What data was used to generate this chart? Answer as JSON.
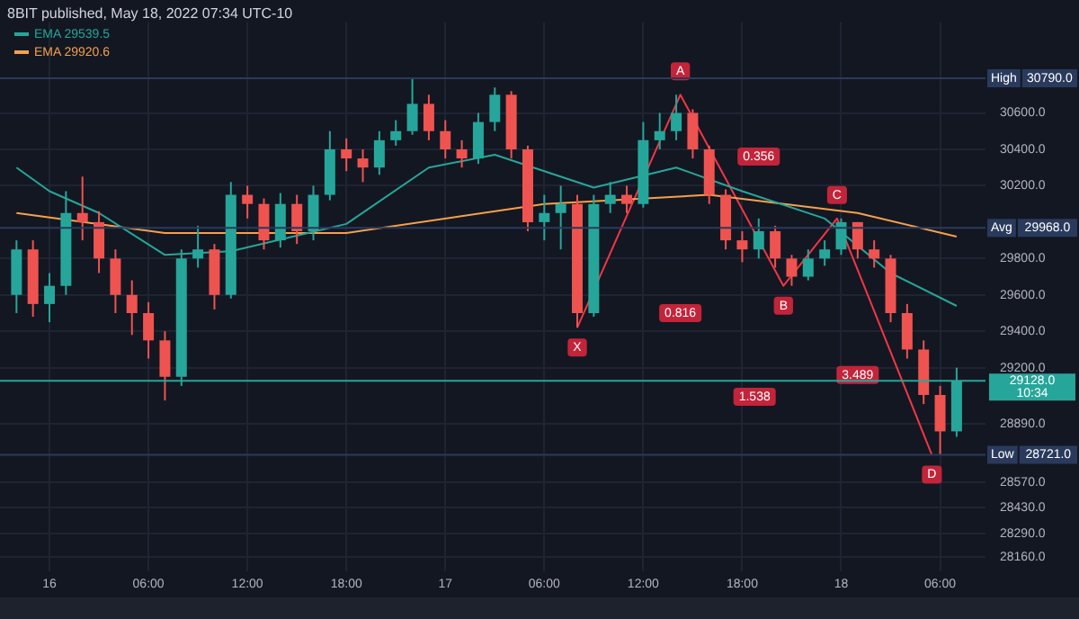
{
  "chart_data": {
    "type": "candlestick",
    "title": "8BIT published, May 18, 2022 07:34 UTC-10",
    "x": [
      "2022-05-15T22:00",
      "2022-05-15T23:00",
      "2022-05-16T00:00",
      "2022-05-16T01:00",
      "2022-05-16T02:00",
      "2022-05-16T03:00",
      "2022-05-16T04:00",
      "2022-05-16T05:00",
      "2022-05-16T06:00",
      "2022-05-16T07:00",
      "2022-05-16T08:00",
      "2022-05-16T09:00",
      "2022-05-16T10:00",
      "2022-05-16T11:00",
      "2022-05-16T12:00",
      "2022-05-16T13:00",
      "2022-05-16T14:00",
      "2022-05-16T15:00",
      "2022-05-16T16:00",
      "2022-05-16T17:00",
      "2022-05-16T18:00",
      "2022-05-16T19:00",
      "2022-05-16T20:00",
      "2022-05-16T21:00",
      "2022-05-16T22:00",
      "2022-05-16T23:00",
      "2022-05-17T00:00",
      "2022-05-17T01:00",
      "2022-05-17T02:00",
      "2022-05-17T03:00",
      "2022-05-17T04:00",
      "2022-05-17T05:00",
      "2022-05-17T06:00",
      "2022-05-17T07:00",
      "2022-05-17T08:00",
      "2022-05-17T09:00",
      "2022-05-17T10:00",
      "2022-05-17T11:00",
      "2022-05-17T12:00",
      "2022-05-17T13:00",
      "2022-05-17T14:00",
      "2022-05-17T15:00",
      "2022-05-17T16:00",
      "2022-05-17T17:00",
      "2022-05-17T18:00",
      "2022-05-17T19:00",
      "2022-05-17T20:00",
      "2022-05-17T21:00",
      "2022-05-17T22:00",
      "2022-05-17T23:00",
      "2022-05-18T00:00",
      "2022-05-18T01:00",
      "2022-05-18T02:00",
      "2022-05-18T03:00",
      "2022-05-18T04:00",
      "2022-05-18T05:00",
      "2022-05-18T06:00",
      "2022-05-18T07:00"
    ],
    "ohlc": [
      [
        29600,
        29900,
        29500,
        29850
      ],
      [
        29850,
        29900,
        29480,
        29550
      ],
      [
        29550,
        29720,
        29450,
        29650
      ],
      [
        29650,
        30170,
        29600,
        30050
      ],
      [
        30050,
        30250,
        29900,
        30000
      ],
      [
        30000,
        30060,
        29720,
        29800
      ],
      [
        29800,
        29850,
        29500,
        29600
      ],
      [
        29600,
        29680,
        29380,
        29500
      ],
      [
        29500,
        29560,
        29250,
        29350
      ],
      [
        29350,
        29400,
        29020,
        29150
      ],
      [
        29150,
        29850,
        29100,
        29800
      ],
      [
        29800,
        29980,
        29750,
        29850
      ],
      [
        29850,
        29880,
        29520,
        29600
      ],
      [
        29600,
        30220,
        29580,
        30150
      ],
      [
        30150,
        30200,
        30020,
        30100
      ],
      [
        30100,
        30130,
        29850,
        29900
      ],
      [
        29900,
        30160,
        29860,
        30100
      ],
      [
        30100,
        30150,
        29880,
        29950
      ],
      [
        29950,
        30200,
        29900,
        30150
      ],
      [
        30150,
        30500,
        30120,
        30400
      ],
      [
        30400,
        30460,
        30280,
        30350
      ],
      [
        30350,
        30400,
        30220,
        30300
      ],
      [
        30300,
        30500,
        30260,
        30450
      ],
      [
        30450,
        30560,
        30420,
        30500
      ],
      [
        30500,
        30790,
        30480,
        30650
      ],
      [
        30650,
        30700,
        30450,
        30500
      ],
      [
        30500,
        30560,
        30350,
        30400
      ],
      [
        30400,
        30450,
        30300,
        30350
      ],
      [
        30350,
        30600,
        30320,
        30550
      ],
      [
        30550,
        30740,
        30500,
        30700
      ],
      [
        30700,
        30720,
        30350,
        30400
      ],
      [
        30400,
        30420,
        29950,
        30000
      ],
      [
        30000,
        30150,
        29900,
        30050
      ],
      [
        30050,
        30200,
        29850,
        30100
      ],
      [
        30100,
        30150,
        29420,
        29500
      ],
      [
        29500,
        30150,
        29480,
        30100
      ],
      [
        30100,
        30220,
        30050,
        30150
      ],
      [
        30150,
        30200,
        30050,
        30100
      ],
      [
        30100,
        30550,
        30080,
        30450
      ],
      [
        30450,
        30600,
        30400,
        30500
      ],
      [
        30500,
        30700,
        30450,
        30600
      ],
      [
        30600,
        30620,
        30350,
        30400
      ],
      [
        30400,
        30420,
        30100,
        30150
      ],
      [
        30150,
        30180,
        29850,
        29900
      ],
      [
        29900,
        29950,
        29780,
        29850
      ],
      [
        29850,
        30020,
        29800,
        29950
      ],
      [
        29950,
        29980,
        29750,
        29800
      ],
      [
        29800,
        29820,
        29650,
        29700
      ],
      [
        29700,
        29850,
        29680,
        29800
      ],
      [
        29800,
        29900,
        29760,
        29850
      ],
      [
        29850,
        30020,
        29820,
        30000
      ],
      [
        30000,
        30000,
        29800,
        29850
      ],
      [
        29850,
        29900,
        29750,
        29800
      ],
      [
        29800,
        29820,
        29450,
        29500
      ],
      [
        29500,
        29550,
        29250,
        29300
      ],
      [
        29300,
        29350,
        29000,
        29050
      ],
      [
        29050,
        29100,
        28721,
        28850
      ],
      [
        28850,
        29200,
        28820,
        29128
      ]
    ],
    "colors": [
      "#26a69a",
      "#ef5350",
      "#26a69a",
      "#26a69a",
      "#ef5350",
      "#ef5350",
      "#ef5350",
      "#ef5350",
      "#ef5350",
      "#ef5350",
      "#26a69a",
      "#26a69a",
      "#ef5350",
      "#26a69a",
      "#ef5350",
      "#ef5350",
      "#26a69a",
      "#ef5350",
      "#26a69a",
      "#26a69a",
      "#ef5350",
      "#ef5350",
      "#26a69a",
      "#26a69a",
      "#26a69a",
      "#ef5350",
      "#ef5350",
      "#ef5350",
      "#26a69a",
      "#26a69a",
      "#ef5350",
      "#ef5350",
      "#26a69a",
      "#26a69a",
      "#ef5350",
      "#26a69a",
      "#26a69a",
      "#ef5350",
      "#26a69a",
      "#26a69a",
      "#26a69a",
      "#ef5350",
      "#ef5350",
      "#ef5350",
      "#ef5350",
      "#26a69a",
      "#ef5350",
      "#ef5350",
      "#26a69a",
      "#26a69a",
      "#26a69a",
      "#ef5350",
      "#ef5350",
      "#ef5350",
      "#ef5350",
      "#ef5350",
      "#ef5350",
      "#26a69a"
    ],
    "series": [
      {
        "type": "line",
        "name": "EMA 29539.5",
        "color": "#26a69a",
        "x": [
          "2022-05-15T22:00",
          "2022-05-16T00:00",
          "2022-05-16T03:00",
          "2022-05-16T07:00",
          "2022-05-16T11:00",
          "2022-05-16T18:00",
          "2022-05-16T23:00",
          "2022-05-17T03:00",
          "2022-05-17T09:00",
          "2022-05-17T14:00",
          "2022-05-17T18:00",
          "2022-05-17T23:00",
          "2022-05-18T03:00",
          "2022-05-18T07:00"
        ],
        "values": [
          30300,
          30170,
          30050,
          29820,
          29840,
          29990,
          30300,
          30370,
          30190,
          30300,
          30170,
          30020,
          29720,
          29539.5
        ]
      },
      {
        "type": "line",
        "name": "EMA 29920.6",
        "color": "#f7a04b",
        "x": [
          "2022-05-15T22:00",
          "2022-05-16T07:00",
          "2022-05-16T18:00",
          "2022-05-17T06:00",
          "2022-05-17T16:00",
          "2022-05-18T01:00",
          "2022-05-18T07:00"
        ],
        "values": [
          30050,
          29940,
          29940,
          30100,
          30150,
          30050,
          29920.6
        ]
      },
      {
        "type": "line",
        "color": "#f23645",
        "x": [
          "2022-05-17T08:00",
          "2022-05-17T14:15",
          "2022-05-17T20:30",
          "2022-05-17T23:45",
          "2022-05-18T05:30"
        ],
        "values": [
          29420,
          30700,
          29650,
          30020,
          28721
        ]
      }
    ],
    "annotations": [
      {
        "text": "X",
        "x": "2022-05-17T08:00",
        "y": 29420
      },
      {
        "text": "A",
        "x": "2022-05-17T14:15",
        "y": 30700
      },
      {
        "text": "B",
        "x": "2022-05-17T20:30",
        "y": 29650
      },
      {
        "text": "C",
        "x": "2022-05-17T23:45",
        "y": 30020
      },
      {
        "text": "D",
        "x": "2022-05-18T05:30",
        "y": 28721
      },
      {
        "text": "0.816",
        "x": "2022-05-17T14:15",
        "y": 29500
      },
      {
        "text": "0.356",
        "x": "2022-05-17T19:00",
        "y": 30360
      },
      {
        "text": "1.538",
        "x": "2022-05-17T18:45",
        "y": 29040
      },
      {
        "text": "3.489",
        "x": "2022-05-18T01:00",
        "y": 29160
      }
    ],
    "ref_lines": [
      {
        "axis": "y",
        "value": 30790,
        "label": "High 30790.0",
        "color": "#2a3a5c"
      },
      {
        "axis": "y",
        "value": 29968,
        "label": "Avg 29968.0",
        "color": "#2a3a5c"
      },
      {
        "axis": "y",
        "value": 28721,
        "label": "Low 28721.0",
        "color": "#2a3a5c"
      },
      {
        "axis": "y",
        "value": 29128,
        "label": "29128.0 10:34",
        "color": "#26a69a"
      }
    ],
    "xlim": [
      "2022-05-15T21:00",
      "2022-05-18T08:45"
    ],
    "xticks": [
      {
        "value": "2022-05-16T00:00",
        "label": "16"
      },
      {
        "value": "2022-05-16T06:00",
        "label": "06:00"
      },
      {
        "value": "2022-05-16T12:00",
        "label": "12:00"
      },
      {
        "value": "2022-05-16T18:00",
        "label": "18:00"
      },
      {
        "value": "2022-05-17T00:00",
        "label": "17"
      },
      {
        "value": "2022-05-17T06:00",
        "label": "06:00"
      },
      {
        "value": "2022-05-17T12:00",
        "label": "12:00"
      },
      {
        "value": "2022-05-17T18:00",
        "label": "18:00"
      },
      {
        "value": "2022-05-18T00:00",
        "label": "18"
      },
      {
        "value": "2022-05-18T06:00",
        "label": "06:00"
      }
    ],
    "ylim": [
      28080,
      31100
    ],
    "yticks": [
      {
        "value": 30600,
        "label": "30600.0"
      },
      {
        "value": 30400,
        "label": "30400.0"
      },
      {
        "value": 30200,
        "label": "30200.0"
      },
      {
        "value": 29800,
        "label": "29800.0"
      },
      {
        "value": 29600,
        "label": "29600.0"
      },
      {
        "value": 29400,
        "label": "29400.0"
      },
      {
        "value": 29200,
        "label": "29200.0"
      },
      {
        "value": 28890,
        "label": "28890.0"
      },
      {
        "value": 28570,
        "label": "28570.0"
      },
      {
        "value": 28430,
        "label": "28430.0"
      },
      {
        "value": 28290,
        "label": "28290.0"
      },
      {
        "value": 28160,
        "label": "28160.0"
      }
    ],
    "grid": true,
    "legend": "top left"
  }
}
